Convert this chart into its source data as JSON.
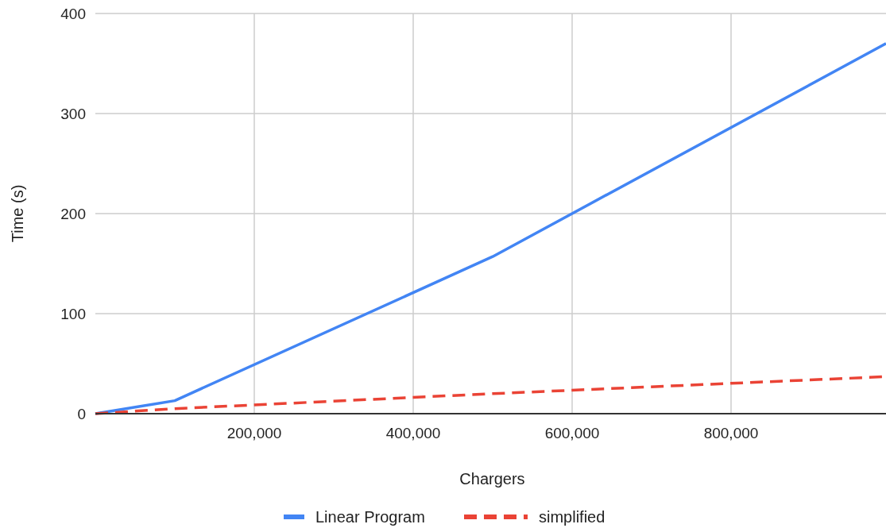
{
  "chart_data": {
    "type": "line",
    "xlabel": "Chargers",
    "ylabel": "Time (s)",
    "xlim": [
      0,
      995000
    ],
    "ylim": [
      0,
      400
    ],
    "xticks": [
      {
        "value": 200000,
        "label": "200,000"
      },
      {
        "value": 400000,
        "label": "400,000"
      },
      {
        "value": 600000,
        "label": "600,000"
      },
      {
        "value": 800000,
        "label": "800,000"
      }
    ],
    "yticks": [
      0,
      100,
      200,
      300,
      400
    ],
    "grid": true,
    "legend": "bottom",
    "marker": "none",
    "x": [
      0,
      100000,
      500000,
      995000
    ],
    "series": [
      {
        "name": "Linear Program",
        "color": "#4285f4",
        "values": [
          0,
          13,
          157,
          370
        ],
        "line_style": "solid"
      },
      {
        "name": "simplified",
        "color": "#ea4335",
        "values": [
          0,
          5,
          20,
          37
        ],
        "line_style": "dashed"
      }
    ]
  }
}
